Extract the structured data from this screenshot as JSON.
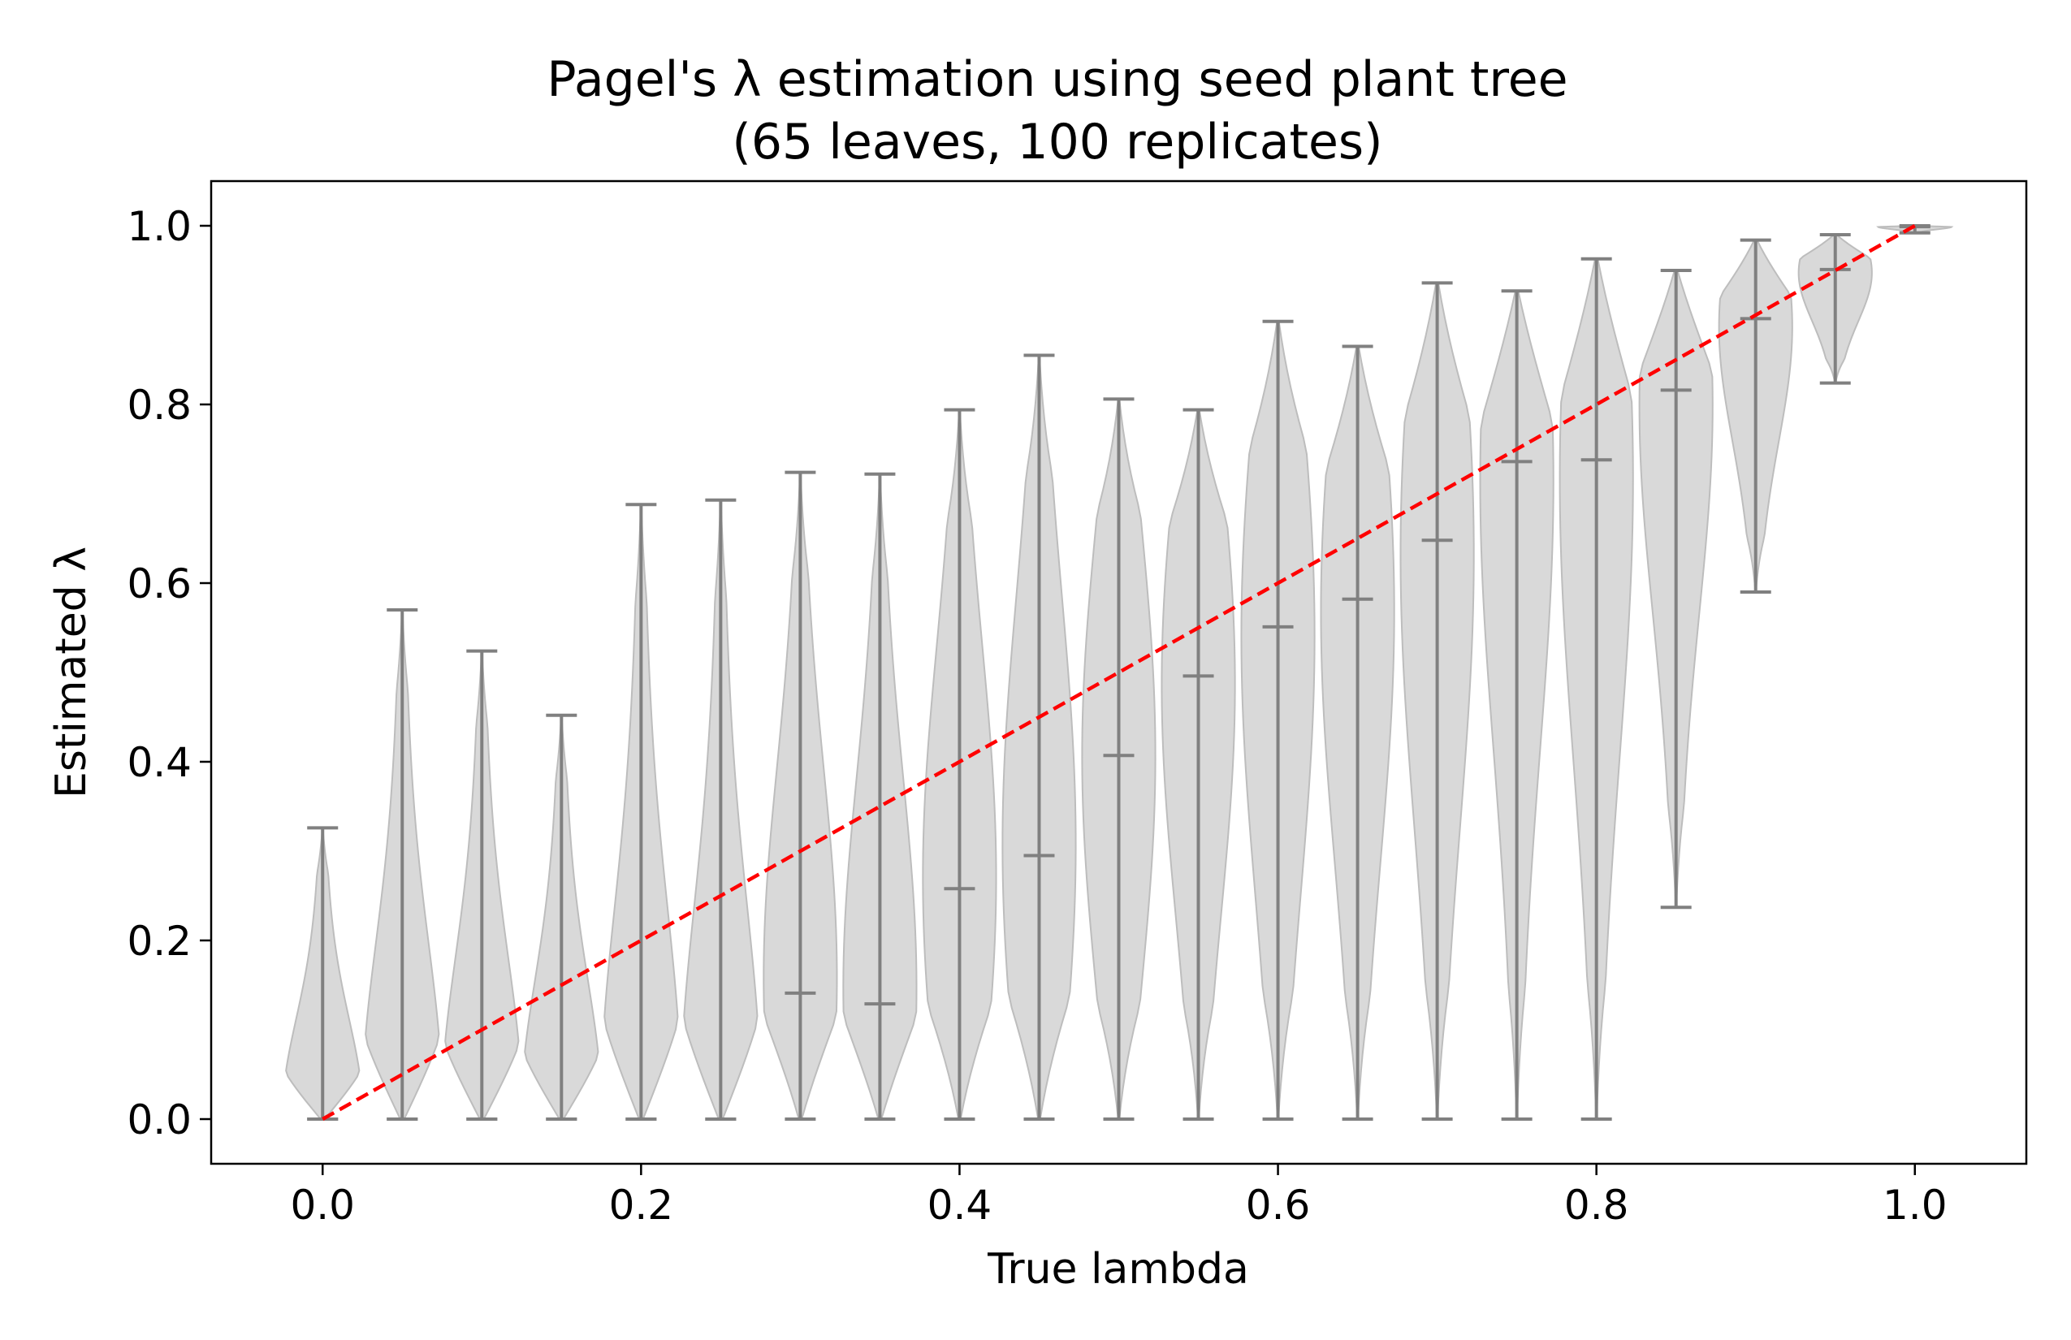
{
  "chart_data": {
    "type": "violin",
    "title": [
      "Pagel's λ estimation using seed plant tree",
      "(65 leaves, 100 replicates)"
    ],
    "xlabel": "True lambda",
    "ylabel": "Estimated λ",
    "xlim": [
      -0.07,
      1.07
    ],
    "ylim": [
      -0.05,
      1.05
    ],
    "xticks": [
      "0.0",
      "0.2",
      "0.4",
      "0.6",
      "0.8",
      "1.0"
    ],
    "yticks": [
      "0.0",
      "0.2",
      "0.4",
      "0.6",
      "0.8",
      "1.0"
    ],
    "grid": false,
    "colors": {
      "violin": "#d9d9d9",
      "violin_edge": "#bdbdbd",
      "whisker": "#808080",
      "reference": "#ff0000"
    },
    "reference_line": {
      "style": "dashed",
      "x": [
        0,
        1
      ],
      "y": [
        0,
        1
      ]
    },
    "violins": [
      {
        "x": 0.0,
        "min": 0.0,
        "median": 0.0,
        "max": 0.326
      },
      {
        "x": 0.05,
        "min": 0.0,
        "median": 0.0,
        "max": 0.57
      },
      {
        "x": 0.1,
        "min": 0.0,
        "median": 0.0,
        "max": 0.524
      },
      {
        "x": 0.15,
        "min": 0.0,
        "median": 0.0,
        "max": 0.452
      },
      {
        "x": 0.2,
        "min": 0.0,
        "median": 0.0,
        "max": 0.688
      },
      {
        "x": 0.25,
        "min": 0.0,
        "median": 0.0,
        "max": 0.693
      },
      {
        "x": 0.3,
        "min": 0.0,
        "median": 0.141,
        "max": 0.724
      },
      {
        "x": 0.35,
        "min": 0.0,
        "median": 0.129,
        "max": 0.722
      },
      {
        "x": 0.4,
        "min": 0.0,
        "median": 0.258,
        "max": 0.794
      },
      {
        "x": 0.45,
        "min": 0.0,
        "median": 0.295,
        "max": 0.855
      },
      {
        "x": 0.5,
        "min": 0.0,
        "median": 0.407,
        "max": 0.806
      },
      {
        "x": 0.55,
        "min": 0.0,
        "median": 0.496,
        "max": 0.794
      },
      {
        "x": 0.6,
        "min": 0.0,
        "median": 0.551,
        "max": 0.893
      },
      {
        "x": 0.65,
        "min": 0.0,
        "median": 0.582,
        "max": 0.865
      },
      {
        "x": 0.7,
        "min": 0.0,
        "median": 0.648,
        "max": 0.936
      },
      {
        "x": 0.75,
        "min": 0.0,
        "median": 0.736,
        "max": 0.927
      },
      {
        "x": 0.8,
        "min": 0.0,
        "median": 0.738,
        "max": 0.963
      },
      {
        "x": 0.85,
        "min": 0.237,
        "median": 0.816,
        "max": 0.95
      },
      {
        "x": 0.9,
        "min": 0.59,
        "median": 0.896,
        "max": 0.984
      },
      {
        "x": 0.95,
        "min": 0.824,
        "median": 0.951,
        "max": 0.99
      },
      {
        "x": 1.0,
        "min": 0.992,
        "median": 0.999,
        "max": 1.0
      }
    ]
  }
}
